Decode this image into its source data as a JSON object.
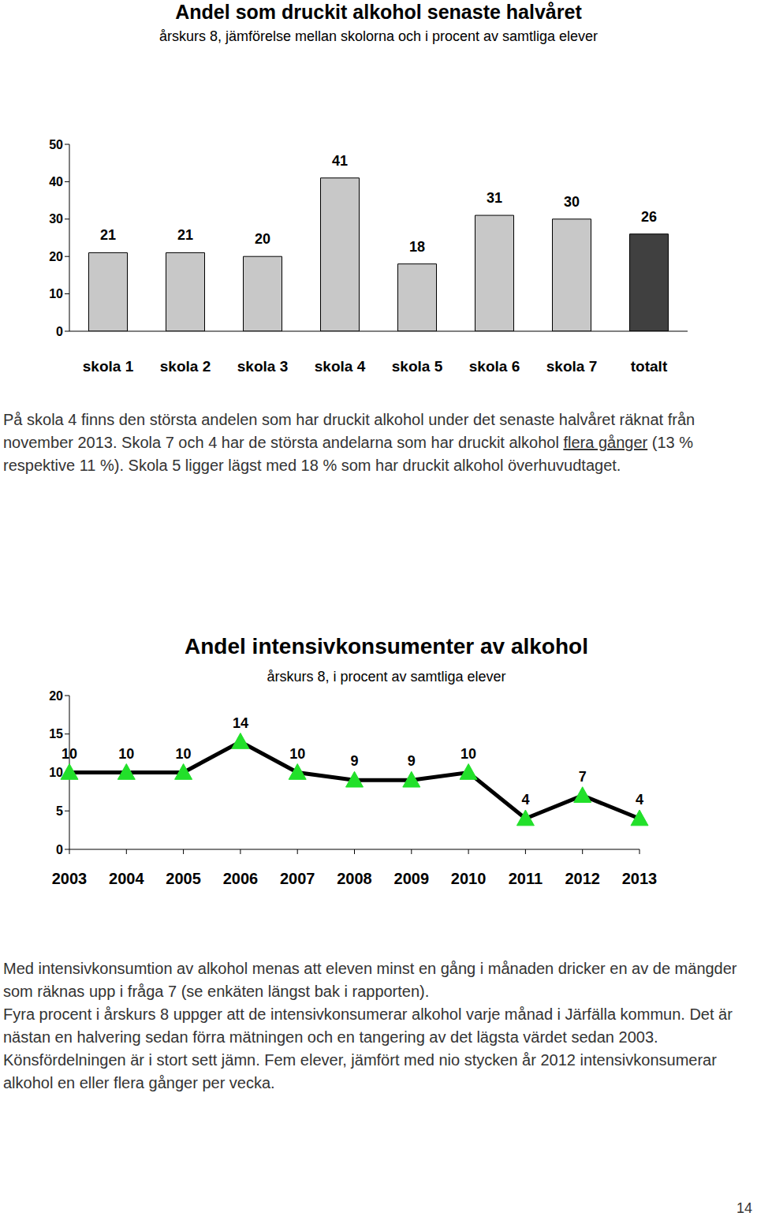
{
  "chart_data": [
    {
      "type": "bar",
      "title": "Andel som druckit alkohol senaste halvåret",
      "subtitle": "årskurs 8, jämförelse mellan skolorna och i procent av samtliga elever",
      "categories": [
        "skola 1",
        "skola 2",
        "skola 3",
        "skola 4",
        "skola 5",
        "skola 6",
        "skola 7",
        "totalt"
      ],
      "values": [
        21,
        21,
        20,
        41,
        18,
        31,
        30,
        26
      ],
      "colors": [
        "#c8c8c8",
        "#c8c8c8",
        "#c8c8c8",
        "#c8c8c8",
        "#c8c8c8",
        "#c8c8c8",
        "#c8c8c8",
        "#404040"
      ],
      "ylim": [
        0,
        50
      ],
      "yticks": [
        0,
        10,
        20,
        30,
        40,
        50
      ],
      "data_labels": true
    },
    {
      "type": "line",
      "title": "Andel intensivkonsumenter av alkohol",
      "subtitle": "årskurs 8, i procent av samtliga elever",
      "categories": [
        "2003",
        "2004",
        "2005",
        "2006",
        "2007",
        "2008",
        "2009",
        "2010",
        "2011",
        "2012",
        "2013"
      ],
      "values": [
        10,
        10,
        10,
        14,
        10,
        9,
        9,
        10,
        4,
        7,
        4
      ],
      "color": "#000000",
      "marker": "triangle",
      "ylim": [
        0,
        20
      ],
      "yticks": [
        0,
        5,
        10,
        15,
        20
      ],
      "data_labels": true
    }
  ],
  "document": {
    "text_after_chart_1": [
      [
        {
          "text": "På skola 4 finns den största andelen som har druckit alkohol under det senaste halvåret räknat från november 2013. Skola 7 och 4 har de största andelarna som har druckit alkohol "
        },
        {
          "text": "flera gånger",
          "underline": true
        },
        {
          "text": " (13 % respektive 11 %). Skola 5 ligger lägst med 18 % som har druckit alkohol överhuvudtaget."
        }
      ]
    ],
    "text_after_chart_2": [
      [
        {
          "text": "Med intensivkonsumtion av alkohol menas att eleven minst en gång i månaden dricker en av de mängder som räknas upp i fråga 7 (se enkäten längst bak i rapporten)."
        }
      ],
      [
        {
          "text": "Fyra procent i årskurs 8 uppger att de intensivkonsumerar alkohol varje månad i Järfälla kommun. Det är nästan en halvering sedan förra mätningen och en tangering av det lägsta värdet sedan 2003. Könsfördelningen är i stort sett jämn. Fem elever, jämfört med nio stycken år 2012 intensivkonsumerar alkohol en eller flera gånger per vecka."
        }
      ]
    ],
    "page_number": "14"
  }
}
